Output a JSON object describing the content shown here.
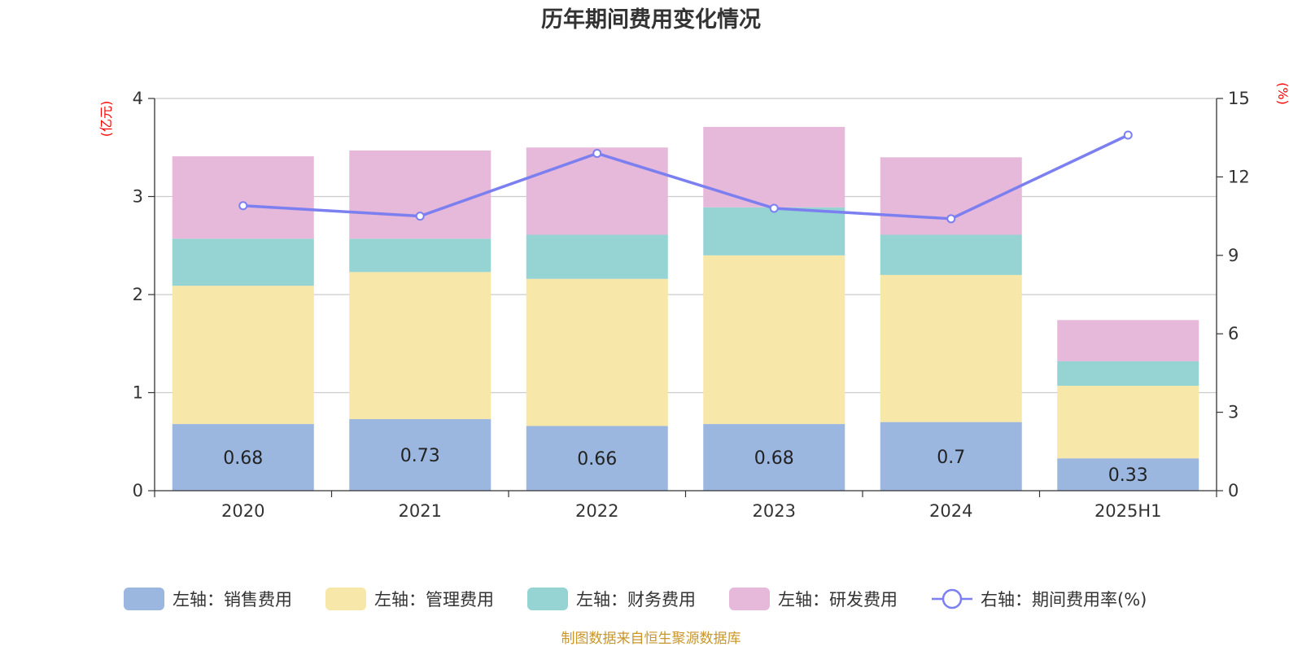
{
  "title": "历年期间费用变化情况",
  "source": "制图数据来自恒生聚源数据库",
  "left_unit": "(亿元)",
  "right_unit": "(%)",
  "chart_data": {
    "type": "bar",
    "stacked": true,
    "categories": [
      "2020",
      "2021",
      "2022",
      "2023",
      "2024",
      "2025H1"
    ],
    "left_axis": {
      "ylim": [
        0,
        4
      ],
      "ticks": [
        "0",
        "1",
        "2",
        "3",
        "4"
      ]
    },
    "right_axis": {
      "ylim": [
        0,
        15
      ],
      "ticks": [
        "0",
        "3",
        "6",
        "9",
        "12",
        "15"
      ]
    },
    "grid": true,
    "legend_position": "bottom",
    "series": [
      {
        "name": "左轴：销售费用",
        "axis": "left",
        "type": "bar",
        "color": "#9bb7e0",
        "values": [
          0.68,
          0.73,
          0.66,
          0.68,
          0.7,
          0.33
        ],
        "labels": [
          "0.68",
          "0.73",
          "0.66",
          "0.68",
          "0.7",
          "0.33"
        ]
      },
      {
        "name": "左轴：管理费用",
        "axis": "left",
        "type": "bar",
        "color": "#f7e7a8",
        "values": [
          1.41,
          1.5,
          1.5,
          1.72,
          1.5,
          0.74
        ]
      },
      {
        "name": "左轴：财务费用",
        "axis": "left",
        "type": "bar",
        "color": "#96d4d4",
        "values": [
          0.48,
          0.34,
          0.45,
          0.49,
          0.41,
          0.25
        ]
      },
      {
        "name": "左轴：研发费用",
        "axis": "left",
        "type": "bar",
        "color": "#e6b8d9",
        "values": [
          0.84,
          0.9,
          0.89,
          0.82,
          0.79,
          0.42
        ]
      },
      {
        "name": "右轴：期间费用率(%)",
        "axis": "right",
        "type": "line",
        "color": "#7b7ff0",
        "values": [
          10.9,
          10.5,
          12.9,
          10.8,
          10.4,
          13.6
        ]
      }
    ]
  }
}
